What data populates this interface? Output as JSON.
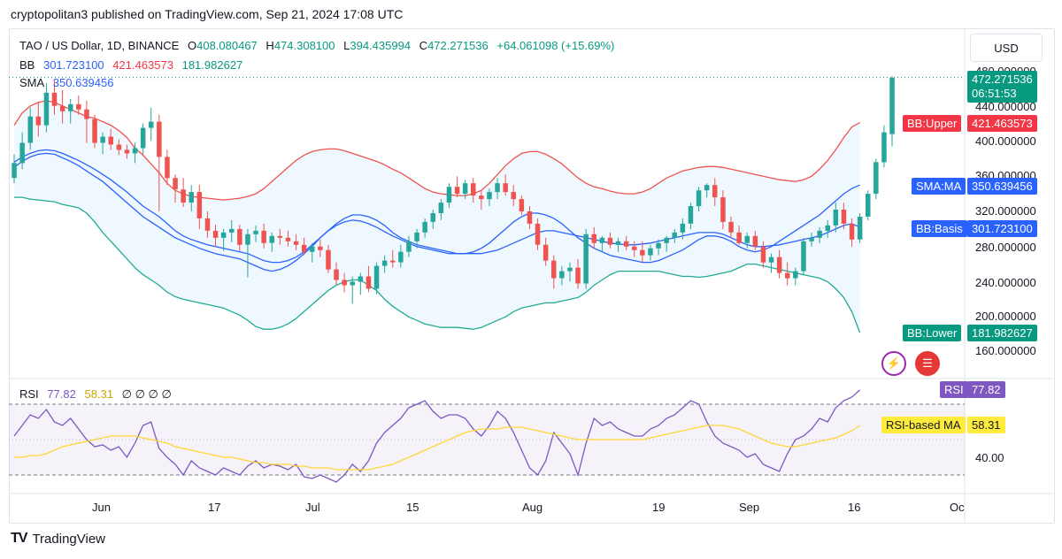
{
  "header": "cryptopolitan3 published on TradingView.com, Sep 21, 2024 17:08 UTC",
  "legend": {
    "symbol": "TAO / US Dollar, 1D, BINANCE",
    "o_label": "O",
    "o": "408.080467",
    "h_label": "H",
    "h": "474.308100",
    "l_label": "L",
    "l": "394.435994",
    "c_label": "C",
    "c": "472.271536",
    "change": "+64.061098 (+15.69%)",
    "bb_label": "BB",
    "bb_basis": "301.723100",
    "bb_upper": "421.463573",
    "bb_lower": "181.982627",
    "sma_label": "SMA",
    "sma": "350.639456"
  },
  "rsi_legend": {
    "label": "RSI",
    "rsi": "77.82",
    "ma": "58.31",
    "zeros": "∅ ∅ ∅ ∅"
  },
  "currency": "USD",
  "price_axis": [
    "480.000000",
    "440.000000",
    "400.000000",
    "360.000000",
    "320.000000",
    "280.000000",
    "240.000000",
    "200.000000",
    "160.000000"
  ],
  "rsi_axis": [
    "40.00"
  ],
  "tags": {
    "price": "472.271536",
    "countdown": "06:51:53",
    "bb_upper_label": "BB:Upper",
    "bb_upper": "421.463573",
    "sma_label": "SMA:MA",
    "sma": "350.639456",
    "bb_basis_label": "BB:Basis",
    "bb_basis": "301.723100",
    "bb_lower_label": "BB:Lower",
    "bb_lower": "181.982627",
    "rsi_label": "RSI",
    "rsi": "77.82",
    "rsi_ma_label": "RSI-based MA",
    "rsi_ma": "58.31"
  },
  "x_labels": [
    "Jun",
    "17",
    "Jul",
    "15",
    "Aug",
    "19",
    "Sep",
    "16",
    "Oc"
  ],
  "footer": {
    "brand": "TradingView"
  },
  "colors": {
    "up": "#26a69a",
    "down": "#ef5350",
    "bb_upper": "#ef5350",
    "bb_lower": "#22ab94",
    "bb_basis": "#2962ff",
    "sma": "#2962ff",
    "rsi": "#7e57c2",
    "rsi_ma": "#fdd835"
  },
  "chart_data": {
    "type": "candlestick",
    "price_range": [
      150,
      490
    ],
    "rsi_range": [
      20,
      90
    ],
    "candles": [
      [
        358,
        385,
        352,
        375
      ],
      [
        375,
        410,
        368,
        398
      ],
      [
        398,
        438,
        390,
        428
      ],
      [
        428,
        445,
        405,
        418
      ],
      [
        418,
        466,
        410,
        455
      ],
      [
        455,
        470,
        430,
        440
      ],
      [
        440,
        458,
        420,
        434
      ],
      [
        434,
        448,
        420,
        442
      ],
      [
        442,
        452,
        430,
        436
      ],
      [
        436,
        446,
        398,
        425
      ],
      [
        425,
        430,
        392,
        398
      ],
      [
        398,
        410,
        385,
        405
      ],
      [
        405,
        414,
        390,
        396
      ],
      [
        396,
        402,
        384,
        390
      ],
      [
        390,
        396,
        380,
        386
      ],
      [
        386,
        398,
        375,
        392
      ],
      [
        392,
        420,
        385,
        415
      ],
      [
        415,
        438,
        400,
        422
      ],
      [
        422,
        430,
        320,
        382
      ],
      [
        382,
        390,
        350,
        358
      ],
      [
        358,
        362,
        330,
        345
      ],
      [
        345,
        358,
        325,
        330
      ],
      [
        330,
        350,
        320,
        342
      ],
      [
        342,
        350,
        300,
        312
      ],
      [
        312,
        320,
        290,
        298
      ],
      [
        298,
        305,
        280,
        290
      ],
      [
        290,
        300,
        275,
        296
      ],
      [
        296,
        310,
        285,
        300
      ],
      [
        300,
        305,
        275,
        282
      ],
      [
        282,
        300,
        245,
        294
      ],
      [
        294,
        304,
        285,
        298
      ],
      [
        298,
        306,
        278,
        284
      ],
      [
        284,
        296,
        274,
        292
      ],
      [
        292,
        300,
        282,
        290
      ],
      [
        290,
        298,
        280,
        286
      ],
      [
        286,
        294,
        276,
        282
      ],
      [
        282,
        290,
        270,
        274
      ],
      [
        274,
        284,
        262,
        280
      ],
      [
        280,
        288,
        268,
        276
      ],
      [
        276,
        282,
        250,
        254
      ],
      [
        254,
        262,
        236,
        242
      ],
      [
        242,
        250,
        228,
        236
      ],
      [
        236,
        246,
        215,
        240
      ],
      [
        240,
        250,
        225,
        246
      ],
      [
        246,
        258,
        228,
        232
      ],
      [
        232,
        262,
        226,
        258
      ],
      [
        258,
        270,
        250,
        264
      ],
      [
        264,
        276,
        256,
        262
      ],
      [
        262,
        282,
        256,
        274
      ],
      [
        274,
        292,
        268,
        286
      ],
      [
        286,
        300,
        278,
        296
      ],
      [
        296,
        312,
        290,
        308
      ],
      [
        308,
        322,
        300,
        318
      ],
      [
        318,
        334,
        310,
        330
      ],
      [
        330,
        352,
        324,
        348
      ],
      [
        348,
        360,
        336,
        340
      ],
      [
        340,
        356,
        334,
        352
      ],
      [
        352,
        358,
        330,
        338
      ],
      [
        338,
        344,
        322,
        334
      ],
      [
        334,
        346,
        326,
        342
      ],
      [
        342,
        358,
        334,
        352
      ],
      [
        352,
        362,
        338,
        342
      ],
      [
        342,
        350,
        326,
        334
      ],
      [
        334,
        338,
        316,
        320
      ],
      [
        320,
        326,
        300,
        306
      ],
      [
        306,
        312,
        276,
        282
      ],
      [
        282,
        290,
        258,
        264
      ],
      [
        264,
        270,
        232,
        244
      ],
      [
        244,
        258,
        236,
        252
      ],
      [
        252,
        262,
        240,
        256
      ],
      [
        256,
        266,
        232,
        238
      ],
      [
        238,
        300,
        232,
        294
      ],
      [
        294,
        302,
        278,
        284
      ],
      [
        284,
        292,
        274,
        290
      ],
      [
        290,
        296,
        278,
        282
      ],
      [
        282,
        290,
        274,
        286
      ],
      [
        286,
        292,
        276,
        280
      ],
      [
        280,
        286,
        268,
        276
      ],
      [
        276,
        286,
        262,
        270
      ],
      [
        270,
        282,
        264,
        278
      ],
      [
        278,
        288,
        270,
        284
      ],
      [
        284,
        292,
        274,
        290
      ],
      [
        290,
        300,
        284,
        296
      ],
      [
        296,
        312,
        288,
        306
      ],
      [
        306,
        330,
        300,
        326
      ],
      [
        326,
        348,
        320,
        344
      ],
      [
        344,
        352,
        336,
        350
      ],
      [
        350,
        358,
        326,
        336
      ],
      [
        336,
        344,
        300,
        308
      ],
      [
        308,
        314,
        290,
        296
      ],
      [
        296,
        304,
        282,
        284
      ],
      [
        284,
        296,
        278,
        292
      ],
      [
        292,
        298,
        276,
        280
      ],
      [
        280,
        286,
        256,
        262
      ],
      [
        262,
        272,
        250,
        268
      ],
      [
        268,
        276,
        244,
        250
      ],
      [
        250,
        262,
        236,
        244
      ],
      [
        244,
        256,
        236,
        252
      ],
      [
        252,
        290,
        248,
        286
      ],
      [
        286,
        296,
        280,
        290
      ],
      [
        290,
        302,
        284,
        298
      ],
      [
        298,
        310,
        290,
        304
      ],
      [
        304,
        330,
        296,
        322
      ],
      [
        322,
        330,
        300,
        306
      ],
      [
        306,
        312,
        280,
        288
      ],
      [
        288,
        318,
        284,
        314
      ],
      [
        314,
        344,
        310,
        340
      ],
      [
        340,
        380,
        334,
        376
      ],
      [
        376,
        418,
        370,
        410
      ],
      [
        408,
        474,
        394,
        472
      ]
    ],
    "bb_upper": [
      418,
      432,
      440,
      444,
      446,
      444,
      440,
      436,
      432,
      428,
      426,
      422,
      418,
      412,
      404,
      392,
      384,
      374,
      364,
      352,
      344,
      340,
      337,
      336,
      335,
      334,
      333,
      334,
      335,
      337,
      340,
      346,
      354,
      362,
      370,
      378,
      384,
      388,
      390,
      391,
      391,
      389,
      386,
      383,
      380,
      377,
      373,
      368,
      364,
      358,
      352,
      346,
      342,
      340,
      339,
      338,
      338,
      340,
      344,
      352,
      362,
      372,
      380,
      386,
      388,
      388,
      385,
      380,
      374,
      366,
      358,
      352,
      348,
      346,
      343,
      341,
      340,
      340,
      342,
      346,
      352,
      358,
      362,
      366,
      368,
      370,
      371,
      371,
      370,
      368,
      366,
      364,
      362,
      360,
      358,
      356,
      355,
      354,
      356,
      360,
      368,
      378,
      390,
      404,
      416,
      421
    ],
    "bb_lower": [
      336,
      336,
      334,
      333,
      332,
      331,
      328,
      326,
      324,
      318,
      308,
      296,
      286,
      276,
      266,
      256,
      248,
      242,
      236,
      228,
      223,
      220,
      218,
      216,
      214,
      212,
      210,
      206,
      202,
      196,
      189,
      186,
      186,
      188,
      192,
      198,
      206,
      214,
      222,
      230,
      236,
      240,
      242,
      242,
      236,
      230,
      220,
      212,
      206,
      200,
      196,
      192,
      190,
      188,
      188,
      188,
      187,
      186,
      188,
      192,
      196,
      200,
      206,
      210,
      212,
      214,
      216,
      216,
      218,
      220,
      222,
      228,
      236,
      242,
      248,
      252,
      252,
      252,
      252,
      252,
      252,
      250,
      248,
      246,
      246,
      245,
      246,
      248,
      250,
      252,
      256,
      260,
      260,
      258,
      256,
      254,
      252,
      250,
      248,
      246,
      244,
      240,
      232,
      222,
      206,
      182
    ],
    "bb_basis": [
      376,
      382,
      386,
      389,
      390,
      389,
      386,
      382,
      378,
      373,
      368,
      362,
      356,
      349,
      342,
      334,
      326,
      320,
      314,
      306,
      298,
      292,
      288,
      285,
      282,
      280,
      278,
      276,
      274,
      272,
      268,
      264,
      262,
      262,
      264,
      268,
      274,
      282,
      290,
      298,
      304,
      308,
      310,
      309,
      306,
      302,
      297,
      292,
      288,
      284,
      280,
      278,
      276,
      274,
      272,
      272,
      272,
      272,
      272,
      274,
      276,
      280,
      284,
      288,
      292,
      296,
      298,
      298,
      296,
      294,
      292,
      290,
      288,
      286,
      284,
      283,
      282,
      282,
      283,
      284,
      286,
      288,
      290,
      292,
      294,
      296,
      296,
      296,
      294,
      290,
      286,
      282,
      280,
      280,
      281,
      282,
      284,
      286,
      288,
      290,
      292,
      296,
      300,
      304,
      306,
      302
    ],
    "sma": [
      370,
      377,
      382,
      385,
      386,
      385,
      381,
      377,
      372,
      366,
      360,
      354,
      346,
      338,
      330,
      322,
      314,
      308,
      302,
      296,
      290,
      286,
      282,
      278,
      275,
      272,
      270,
      268,
      266,
      262,
      258,
      254,
      252,
      254,
      258,
      264,
      272,
      280,
      290,
      298,
      306,
      312,
      316,
      316,
      314,
      310,
      304,
      296,
      290,
      286,
      282,
      280,
      278,
      276,
      274,
      272,
      272,
      274,
      278,
      284,
      292,
      300,
      308,
      314,
      318,
      318,
      316,
      312,
      306,
      298,
      290,
      284,
      278,
      274,
      270,
      268,
      266,
      264,
      262,
      262,
      264,
      268,
      272,
      276,
      282,
      288,
      292,
      292,
      290,
      286,
      280,
      276,
      274,
      276,
      280,
      286,
      292,
      298,
      304,
      310,
      316,
      324,
      332,
      340,
      346,
      350
    ],
    "rsi": [
      52,
      58,
      64,
      62,
      67,
      60,
      58,
      62,
      56,
      50,
      46,
      47,
      44,
      46,
      40,
      48,
      58,
      60,
      45,
      40,
      36,
      30,
      38,
      34,
      32,
      30,
      34,
      32,
      30,
      35,
      38,
      34,
      36,
      35,
      33,
      36,
      29,
      28,
      30,
      28,
      26,
      30,
      36,
      32,
      38,
      48,
      54,
      58,
      62,
      68,
      70,
      72,
      66,
      62,
      64,
      64,
      62,
      56,
      52,
      58,
      66,
      62,
      54,
      44,
      34,
      30,
      38,
      54,
      48,
      42,
      30,
      48,
      62,
      58,
      60,
      56,
      54,
      52,
      52,
      56,
      58,
      62,
      64,
      68,
      72,
      70,
      60,
      52,
      48,
      46,
      44,
      40,
      42,
      36,
      34,
      32,
      42,
      50,
      52,
      56,
      62,
      60,
      68,
      72,
      74,
      78
    ],
    "rsi_ma": [
      40,
      40,
      41,
      41,
      42,
      44,
      46,
      47,
      48,
      49,
      50,
      51,
      52,
      52,
      52,
      52,
      51,
      50,
      49,
      48,
      46,
      45,
      44,
      43,
      42,
      41,
      40,
      40,
      39,
      38,
      37,
      37,
      36,
      36,
      36,
      35,
      35,
      34,
      34,
      34,
      33,
      33,
      33,
      33,
      33,
      34,
      35,
      36,
      38,
      40,
      42,
      44,
      46,
      48,
      50,
      52,
      54,
      55,
      56,
      56,
      56,
      57,
      57,
      57,
      56,
      55,
      54,
      53,
      52,
      51,
      50,
      50,
      50,
      50,
      50,
      50,
      50,
      50,
      50,
      51,
      52,
      53,
      54,
      55,
      56,
      57,
      58,
      58,
      58,
      57,
      56,
      54,
      52,
      50,
      48,
      47,
      46,
      46,
      47,
      48,
      49,
      50,
      51,
      53,
      55,
      58
    ]
  }
}
